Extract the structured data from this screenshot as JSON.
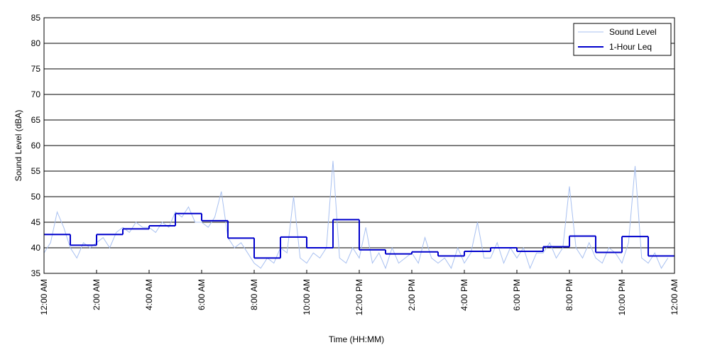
{
  "chart_data": {
    "type": "line",
    "xlabel": "Time (HH:MM)",
    "ylabel": "Sound Level (dBA)",
    "xlim": [
      0,
      24
    ],
    "ylim": [
      35,
      85
    ],
    "xticks": [
      {
        "value": 0,
        "label": "12:00 AM"
      },
      {
        "value": 2,
        "label": "2:00 AM"
      },
      {
        "value": 4,
        "label": "4:00 AM"
      },
      {
        "value": 6,
        "label": "6:00 AM"
      },
      {
        "value": 8,
        "label": "8:00 AM"
      },
      {
        "value": 10,
        "label": "10:00 AM"
      },
      {
        "value": 12,
        "label": "12:00 PM"
      },
      {
        "value": 14,
        "label": "2:00 PM"
      },
      {
        "value": 16,
        "label": "4:00 PM"
      },
      {
        "value": 18,
        "label": "6:00 PM"
      },
      {
        "value": 20,
        "label": "8:00 PM"
      },
      {
        "value": 22,
        "label": "10:00 PM"
      },
      {
        "value": 24,
        "label": "12:00 AM"
      }
    ],
    "yticks": [
      35,
      40,
      45,
      50,
      55,
      60,
      65,
      70,
      75,
      80,
      85
    ],
    "grid": true,
    "legend": "upper right",
    "series": [
      {
        "name": "Sound Level",
        "color": "#a8c0f0",
        "style": "line",
        "x": [
          0,
          0.25,
          0.5,
          0.75,
          1,
          1.25,
          1.5,
          1.75,
          2,
          2.25,
          2.5,
          2.75,
          3,
          3.25,
          3.5,
          3.75,
          4,
          4.25,
          4.5,
          4.75,
          5,
          5.25,
          5.5,
          5.75,
          6,
          6.25,
          6.5,
          6.75,
          7,
          7.25,
          7.5,
          7.75,
          8,
          8.25,
          8.5,
          8.75,
          9,
          9.25,
          9.5,
          9.75,
          10,
          10.25,
          10.5,
          10.75,
          11,
          11.25,
          11.5,
          11.75,
          12,
          12.25,
          12.5,
          12.75,
          13,
          13.25,
          13.5,
          13.75,
          14,
          14.25,
          14.5,
          14.75,
          15,
          15.25,
          15.5,
          15.75,
          16,
          16.25,
          16.5,
          16.75,
          17,
          17.25,
          17.5,
          17.75,
          18,
          18.25,
          18.5,
          18.75,
          19,
          19.25,
          19.5,
          19.75,
          20,
          20.25,
          20.5,
          20.75,
          21,
          21.25,
          21.5,
          21.75,
          22,
          22.25,
          22.5,
          22.75,
          23,
          23.25,
          23.5,
          23.75
        ],
        "values": [
          39,
          41,
          47,
          44,
          40,
          38,
          41,
          40,
          41,
          42,
          40,
          43,
          44,
          43,
          45,
          44,
          44,
          43,
          45,
          44,
          47,
          46,
          48,
          45,
          45,
          44,
          46,
          51,
          42,
          40,
          41,
          39,
          37,
          36,
          38,
          37,
          40,
          39,
          50,
          38,
          37,
          39,
          38,
          40,
          57,
          38,
          37,
          40,
          38,
          44,
          37,
          39,
          36,
          40,
          37,
          38,
          39,
          37,
          42,
          38,
          37,
          38,
          36,
          40,
          37,
          39,
          45,
          38,
          38,
          41,
          37,
          40,
          38,
          40,
          36,
          39,
          39,
          41,
          38,
          40,
          52,
          40,
          38,
          41,
          38,
          37,
          40,
          39,
          37,
          41,
          56,
          38,
          37,
          39,
          36,
          38
        ]
      },
      {
        "name": "1-Hour Leq",
        "color": "#0000cc",
        "style": "step",
        "x": [
          0,
          1,
          2,
          3,
          4,
          5,
          6,
          7,
          8,
          9,
          10,
          11,
          12,
          13,
          14,
          15,
          16,
          17,
          18,
          19,
          20,
          21,
          22,
          23
        ],
        "values": [
          42.6,
          40.5,
          42.6,
          43.7,
          44.3,
          46.7,
          45.3,
          41.9,
          38.0,
          42.1,
          40.0,
          45.5,
          39.6,
          38.8,
          39.2,
          38.4,
          39.3,
          40.0,
          39.3,
          40.2,
          42.3,
          39.1,
          42.2,
          38.4
        ]
      }
    ]
  }
}
